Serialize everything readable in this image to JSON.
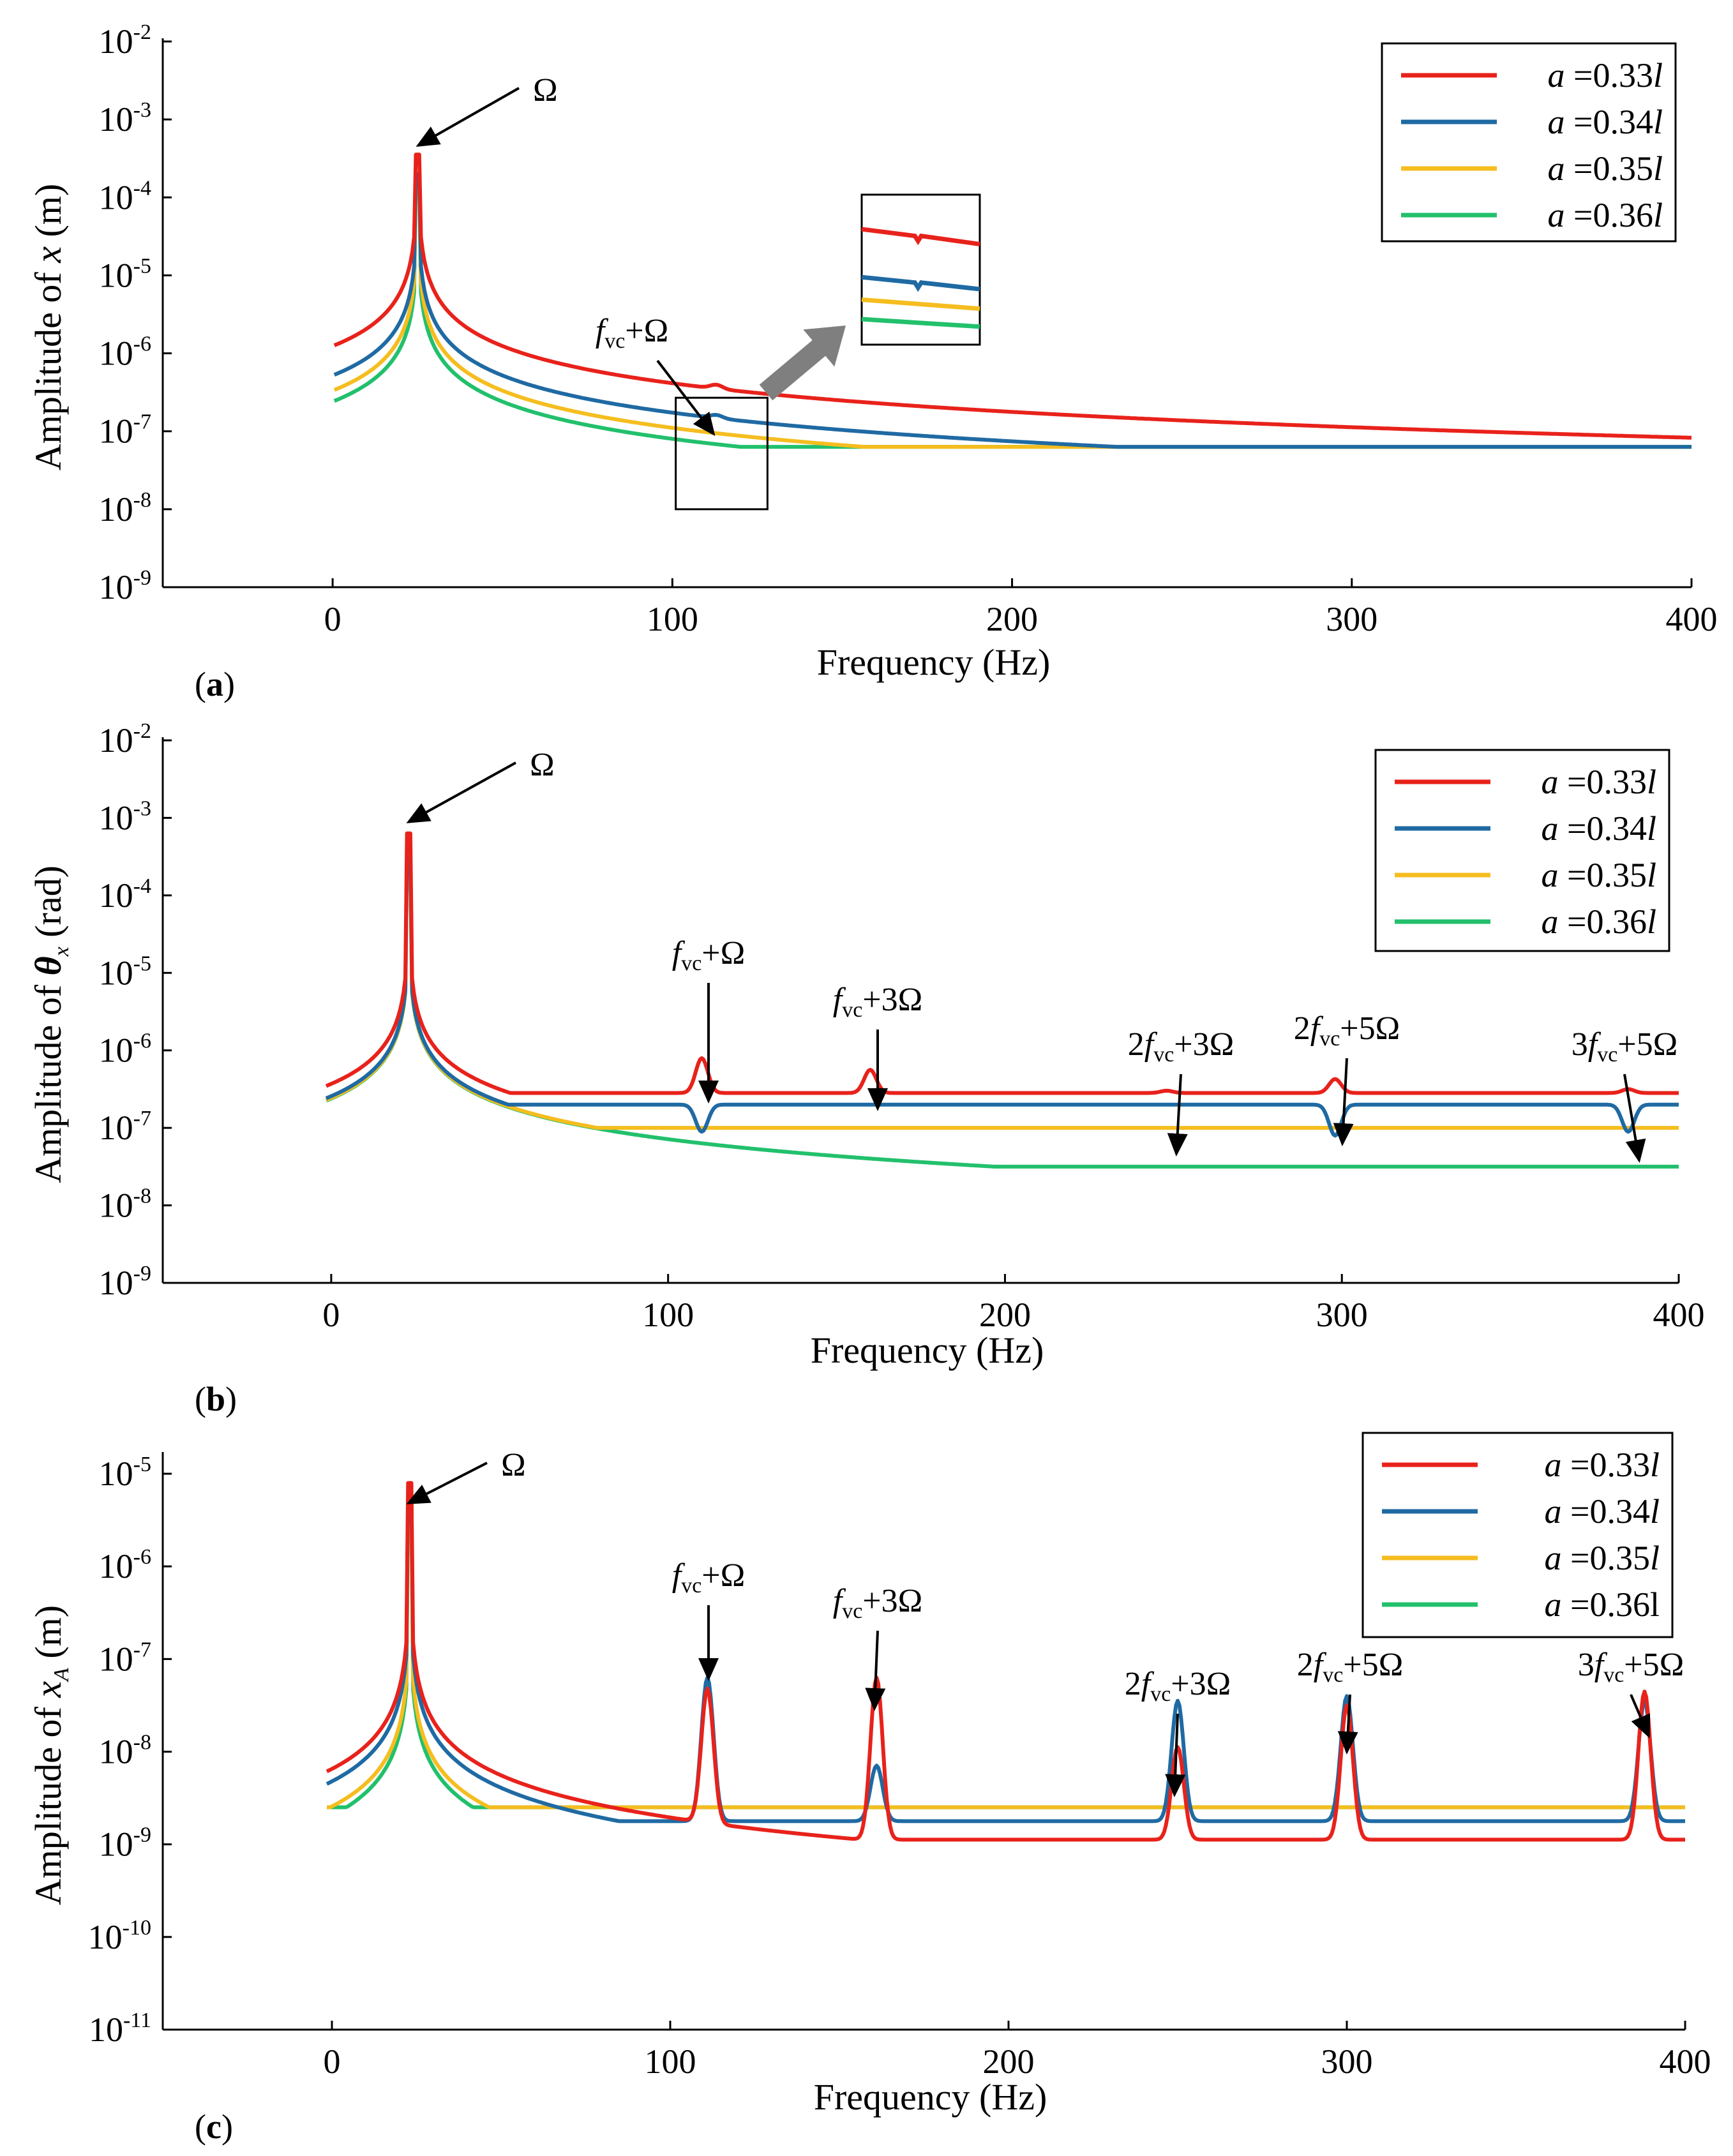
{
  "colors": {
    "a033": "#e8221b",
    "a034": "#1f6aa3",
    "a035": "#f5bd1f",
    "a036": "#22c06c",
    "zoom_arrow": "#7f7f7f"
  },
  "chart_data": [
    {
      "type": "line",
      "panel_label": "(a)",
      "panel_letter": "a",
      "ylabel_prefix": "Amplitude of ",
      "ylabel_var": "x",
      "ylabel_sub": "",
      "ylabel_unit": " (m)",
      "xlabel": "Frequency (Hz)",
      "xlim": [
        -50,
        400
      ],
      "ylim_exp": [
        -9,
        -2
      ],
      "x_ticks": [
        0,
        100,
        200,
        300,
        400
      ],
      "y_tick_exps": [
        -9,
        -8,
        -7,
        -6,
        -5,
        -4,
        -3,
        -2
      ],
      "y_tick_base": "10",
      "y_tick_labels": [
        "-9",
        "-8",
        "-7",
        "-6",
        "-5",
        "-4",
        "-3",
        "-2"
      ],
      "legend": [
        "a =0.33l",
        "a =0.34l",
        "a =0.35l",
        "a =0.36l"
      ],
      "legend_items": [
        {
          "a": "a",
          "eq": " =0.33",
          "l": "l"
        },
        {
          "a": "a",
          "eq": " =0.34",
          "l": "l"
        },
        {
          "a": "a",
          "eq": " =0.35",
          "l": "l"
        },
        {
          "a": "a",
          "eq": " =0.36",
          "l": "l"
        }
      ],
      "legend_position": "top-right",
      "annotations": [
        {
          "label": "Ω",
          "pre": "",
          "f": "",
          "vc": "",
          "post": "Ω",
          "x": 25
        },
        {
          "label": "fvc+Ω",
          "pre": "",
          "f": "f",
          "vc": "vc",
          "post": "+Ω",
          "x": 113
        }
      ],
      "inset_zoom": {
        "x_range": [
          101,
          128
        ],
        "y_range_exp": [
          -8.0,
          -6.57
        ]
      },
      "series": [
        {
          "name": "a =0.33l",
          "start_exp": -7.2,
          "peak_x": 25,
          "peak_exp": -3.45,
          "scale": 3.1e-05,
          "spikes": [
            {
              "x": 113,
              "dexp": 0.05
            }
          ]
        },
        {
          "name": "a =0.34l",
          "start_exp": -7.2,
          "peak_x": 25,
          "peak_exp": -3.7,
          "scale": 1.3e-05,
          "spikes": [
            {
              "x": 113,
              "dexp": 0.04
            }
          ]
        },
        {
          "name": "a =0.35l",
          "start_exp": -7.2,
          "peak_x": 25,
          "peak_exp": -3.75,
          "scale": 8.3e-06,
          "spikes": []
        },
        {
          "name": "a =0.36l",
          "start_exp": -7.2,
          "peak_x": 25,
          "peak_exp": -3.8,
          "scale": 6e-06,
          "spikes": []
        }
      ]
    },
    {
      "type": "line",
      "panel_label": "(b)",
      "panel_letter": "b",
      "ylabel_prefix": "Amplitude of ",
      "ylabel_var": "θ",
      "ylabel_sub": "x",
      "ylabel_unit": " (rad)",
      "xlabel": "Frequency (Hz)",
      "xlim": [
        -50,
        400
      ],
      "ylim_exp": [
        -9,
        -2
      ],
      "x_ticks": [
        0,
        100,
        200,
        300,
        400
      ],
      "y_tick_exps": [
        -9,
        -8,
        -7,
        -6,
        -5,
        -4,
        -3,
        -2
      ],
      "y_tick_base": "10",
      "y_tick_labels": [
        "-9",
        "-8",
        "-7",
        "-6",
        "-5",
        "-4",
        "-3",
        "-2"
      ],
      "legend": [
        "a =0.33l",
        "a =0.34l",
        "a =0.35l",
        "a =0.36l"
      ],
      "legend_items": [
        {
          "a": "a",
          "eq": " =0.33",
          "l": "l"
        },
        {
          "a": "a",
          "eq": " =0.34",
          "l": "l"
        },
        {
          "a": "a",
          "eq": " =0.35",
          "l": "l"
        },
        {
          "a": "a",
          "eq": " =0.36",
          "l": "l"
        }
      ],
      "legend_position": "top-right",
      "annotations": [
        {
          "label": "Ω",
          "pre": "",
          "f": "",
          "vc": "",
          "post": "Ω",
          "x": 23
        },
        {
          "label": "fvc+Ω",
          "pre": "",
          "f": "f",
          "vc": "vc",
          "post": "+Ω",
          "x": 110
        },
        {
          "label": "fvc+3Ω",
          "pre": "",
          "f": "f",
          "vc": "vc",
          "post": "+3Ω",
          "x": 160
        },
        {
          "label": "2fvc+3Ω",
          "pre": "2",
          "f": "f",
          "vc": "vc",
          "post": "+3Ω",
          "x": 248
        },
        {
          "label": "2fvc+5Ω",
          "pre": "2",
          "f": "f",
          "vc": "vc",
          "post": "+5Ω",
          "x": 298
        },
        {
          "label": "3fvc+5Ω",
          "pre": "3",
          "f": "f",
          "vc": "vc",
          "post": "+5Ω",
          "x": 385
        }
      ],
      "series": [
        {
          "name": "a =0.33l",
          "start_exp": -6.55,
          "peak_x": 23,
          "peak_exp": -3.2,
          "scale": 8.5e-06,
          "spikes": [
            {
              "x": 110,
              "dexp": 0.45
            },
            {
              "x": 160,
              "dexp": 0.3
            },
            {
              "x": 248,
              "dexp": 0.03
            },
            {
              "x": 298,
              "dexp": 0.18
            },
            {
              "x": 385,
              "dexp": 0.05
            }
          ]
        },
        {
          "name": "a =0.34l",
          "start_exp": -6.7,
          "peak_x": 23,
          "peak_exp": -3.5,
          "scale": 5.9e-06,
          "spikes": [
            {
              "x": 110,
              "dexp": -0.35
            },
            {
              "x": 298,
              "dexp": -0.4
            },
            {
              "x": 385,
              "dexp": -0.35
            }
          ]
        },
        {
          "name": "a =0.35l",
          "start_exp": -7.0,
          "peak_x": 23,
          "peak_exp": -3.6,
          "scale": 5.6e-06,
          "spikes": []
        },
        {
          "name": "a =0.36l",
          "start_exp": -7.5,
          "peak_x": 23,
          "peak_exp": -3.65,
          "scale": 5.5e-06,
          "spikes": []
        }
      ]
    },
    {
      "type": "line",
      "panel_label": "(c)",
      "panel_letter": "c",
      "ylabel_prefix": "Amplitude of ",
      "ylabel_var": "x",
      "ylabel_sub": "A",
      "ylabel_unit": " (m)",
      "xlabel": "Frequency (Hz)",
      "xlim": [
        -50,
        400
      ],
      "ylim_exp": [
        -11,
        -4.8
      ],
      "x_ticks": [
        0,
        100,
        200,
        300,
        400
      ],
      "y_tick_exps": [
        -11,
        -10,
        -9,
        -8,
        -7,
        -6,
        -5
      ],
      "y_tick_base": "10",
      "y_tick_labels": [
        "-11",
        "-10",
        "-9",
        "-8",
        "-7",
        "-6",
        "-5"
      ],
      "legend": [
        "a =0.33l",
        "a =0.34l",
        "a =0.35l",
        "a =0.36l"
      ],
      "legend_items": [
        {
          "a": "a",
          "eq": " =0.33",
          "l": "l"
        },
        {
          "a": "a",
          "eq": " =0.34",
          "l": "l"
        },
        {
          "a": "a",
          "eq": " =0.35",
          "l": "l"
        },
        {
          "a": "a",
          "eq": " =0.36l",
          "l": ""
        }
      ],
      "legend_position": "top-right",
      "annotations": [
        {
          "label": "Ω",
          "pre": "",
          "f": "",
          "vc": "",
          "post": "Ω",
          "x": 23
        },
        {
          "label": "fvc+Ω",
          "pre": "",
          "f": "f",
          "vc": "vc",
          "post": "+Ω",
          "x": 111
        },
        {
          "label": "fvc+3Ω",
          "pre": "",
          "f": "f",
          "vc": "vc",
          "post": "+3Ω",
          "x": 161
        },
        {
          "label": "2fvc+3Ω",
          "pre": "2",
          "f": "f",
          "vc": "vc",
          "post": "+3Ω",
          "x": 250
        },
        {
          "label": "2fvc+5Ω",
          "pre": "2",
          "f": "f",
          "vc": "vc",
          "post": "+5Ω",
          "x": 300
        },
        {
          "label": "3fvc+5Ω",
          "pre": "3",
          "f": "f",
          "vc": "vc",
          "post": "+5Ω",
          "x": 388
        }
      ],
      "series": [
        {
          "name": "a =0.33l",
          "start_exp": -8.95,
          "peak_x": 23,
          "peak_exp": -5.1,
          "scale": 1.5e-07,
          "spikes": [
            {
              "x": 111,
              "dexp": 1.45
            },
            {
              "x": 161,
              "dexp": 1.75
            },
            {
              "x": 250,
              "dexp": 1.0
            },
            {
              "x": 300,
              "dexp": 1.45
            },
            {
              "x": 388,
              "dexp": 1.6
            }
          ]
        },
        {
          "name": "a =0.34l",
          "start_exp": -8.75,
          "peak_x": 23,
          "peak_exp": -5.25,
          "scale": 1.1e-07,
          "spikes": [
            {
              "x": 111,
              "dexp": 1.55
            },
            {
              "x": 161,
              "dexp": 0.6
            },
            {
              "x": 250,
              "dexp": 1.3
            },
            {
              "x": 300,
              "dexp": 1.35
            },
            {
              "x": 388,
              "dexp": 1.3
            }
          ]
        },
        {
          "name": "a =0.35l",
          "start_exp": -8.6,
          "peak_x": 23,
          "peak_exp": -5.35,
          "scale": 5.9e-08,
          "spikes": []
        },
        {
          "name": "a =0.36l",
          "start_exp": -8.6,
          "peak_x": 23,
          "peak_exp": -5.4,
          "scale": 4.7e-08,
          "spikes": []
        }
      ]
    }
  ]
}
